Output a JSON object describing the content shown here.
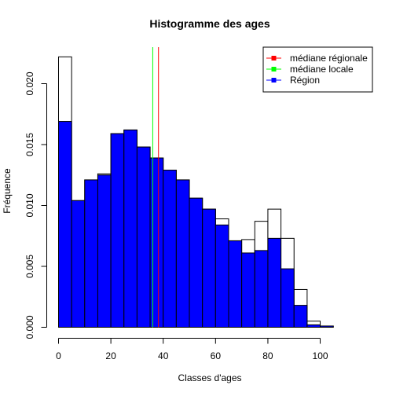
{
  "chart_data": {
    "type": "bar",
    "title": "Histogramme des ages",
    "xlabel": "Classes d'ages",
    "ylabel": "Fréquence",
    "xlim": [
      0,
      115
    ],
    "ylim": [
      0,
      0.023
    ],
    "bin_width": 5,
    "x_ticks": [
      0,
      20,
      40,
      60,
      80,
      100
    ],
    "x_tick_labels": [
      "0",
      "20",
      "40",
      "60",
      "80",
      "100"
    ],
    "y_ticks": [
      0,
      0.005,
      0.01,
      0.015,
      0.02
    ],
    "y_tick_labels": [
      "0.000",
      "0.005",
      "0.010",
      "0.015",
      "0.020"
    ],
    "bin_starts": [
      0,
      5,
      10,
      15,
      20,
      25,
      30,
      35,
      40,
      45,
      50,
      55,
      60,
      65,
      70,
      75,
      80,
      85,
      90,
      95,
      100,
      105,
      110
    ],
    "series": [
      {
        "name": "médiane locale",
        "values": [
          0.0222,
          0.0104,
          0.0121,
          0.0126,
          0.0159,
          0.0162,
          0.0148,
          0.0139,
          0.0129,
          0.0121,
          0.0106,
          0.0097,
          0.0089,
          0.0071,
          0.0072,
          0.0087,
          0.0097,
          0.0073,
          0.0031,
          0.0005,
          0.0001,
          0.0,
          0.0
        ],
        "color": "#ffffff",
        "stroke": "#000000"
      },
      {
        "name": "Région",
        "values": [
          0.0169,
          0.0104,
          0.0121,
          0.0125,
          0.0159,
          0.0162,
          0.0148,
          0.0139,
          0.0129,
          0.0121,
          0.0106,
          0.0097,
          0.0084,
          0.0071,
          0.0061,
          0.0063,
          0.0073,
          0.0048,
          0.0018,
          0.0002,
          0.0001,
          0.0,
          0.0
        ],
        "color": "#0000ff",
        "stroke": "#000000"
      }
    ],
    "vlines": [
      {
        "name": "médiane locale",
        "x": 36,
        "color": "#00ff00"
      },
      {
        "name": "médiane régionale",
        "x": 38.2,
        "color": "#ff0000"
      }
    ],
    "legend": {
      "position": "top-right",
      "entries": [
        {
          "label": "médiane régionale",
          "color": "#ff0000"
        },
        {
          "label": "médiane locale",
          "color": "#00ff00"
        },
        {
          "label": "Région",
          "color": "#0000ff"
        }
      ]
    }
  }
}
